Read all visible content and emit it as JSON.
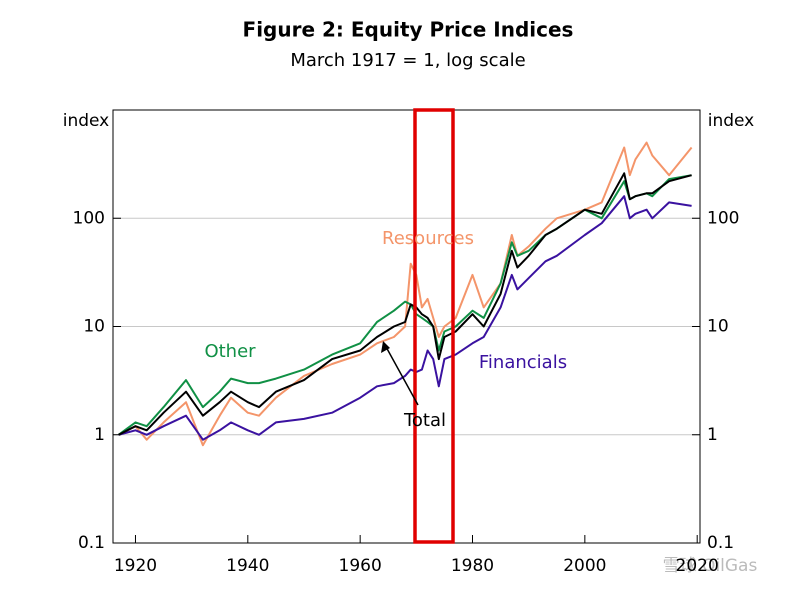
{
  "chart_data": {
    "type": "line",
    "title": "Figure 2: Equity Price Indices",
    "subtitle": "March 1917 = 1, log scale",
    "y_label": "index",
    "y2_label": "index",
    "watermark": "雪球 OilGas",
    "log_scale": true,
    "grid": true,
    "x": [
      1917,
      1920,
      1922,
      1925,
      1929,
      1932,
      1935,
      1937,
      1940,
      1942,
      1945,
      1950,
      1955,
      1960,
      1963,
      1966,
      1968,
      1969,
      1970,
      1971,
      1972,
      1973,
      1974,
      1975,
      1977,
      1980,
      1982,
      1985,
      1987,
      1988,
      1990,
      1993,
      1995,
      2000,
      2003,
      2007,
      2008,
      2009,
      2011,
      2012,
      2015,
      2019
    ],
    "xlim": [
      1916,
      2020.5
    ],
    "xticks": [
      1920,
      1940,
      1960,
      1980,
      2000,
      2020
    ],
    "ylim": [
      0.1,
      1000
    ],
    "yticks": [
      0.1,
      1,
      10,
      100
    ],
    "series": [
      {
        "name": "Resources",
        "color": "#f4956a",
        "values": [
          1,
          1.2,
          0.9,
          1.3,
          2.0,
          0.8,
          1.5,
          2.2,
          1.6,
          1.5,
          2.2,
          3.5,
          4.5,
          5.5,
          7,
          8,
          10,
          38,
          30,
          15,
          18,
          12,
          8,
          10,
          12,
          30,
          15,
          25,
          70,
          45,
          55,
          80,
          100,
          120,
          140,
          450,
          250,
          350,
          500,
          380,
          250,
          450
        ]
      },
      {
        "name": "Other",
        "color": "#109045",
        "values": [
          1,
          1.3,
          1.2,
          1.8,
          3.2,
          1.8,
          2.5,
          3.3,
          3.0,
          3.0,
          3.3,
          4.0,
          5.5,
          7,
          11,
          14,
          17,
          16,
          13,
          12,
          11,
          10,
          6,
          9,
          10,
          14,
          12,
          25,
          60,
          45,
          50,
          70,
          80,
          120,
          100,
          220,
          150,
          160,
          170,
          160,
          230,
          250
        ]
      },
      {
        "name": "Financials",
        "color": "#3a12a0",
        "values": [
          1,
          1.1,
          1.0,
          1.2,
          1.5,
          0.9,
          1.1,
          1.3,
          1.1,
          1.0,
          1.3,
          1.4,
          1.6,
          2.2,
          2.8,
          3.0,
          3.5,
          4,
          3.8,
          4,
          6,
          5,
          2.8,
          5,
          5.5,
          7,
          8,
          15,
          30,
          22,
          28,
          40,
          45,
          70,
          90,
          160,
          100,
          110,
          120,
          100,
          140,
          130
        ]
      },
      {
        "name": "Total",
        "color": "#000000",
        "values": [
          1,
          1.2,
          1.1,
          1.6,
          2.5,
          1.5,
          2.0,
          2.5,
          2.0,
          1.8,
          2.5,
          3.2,
          5,
          6,
          8,
          10,
          11,
          16,
          15,
          13,
          12,
          10,
          5,
          8,
          9,
          13,
          10,
          20,
          50,
          35,
          45,
          70,
          80,
          120,
          110,
          260,
          150,
          160,
          170,
          170,
          220,
          250
        ]
      }
    ]
  }
}
